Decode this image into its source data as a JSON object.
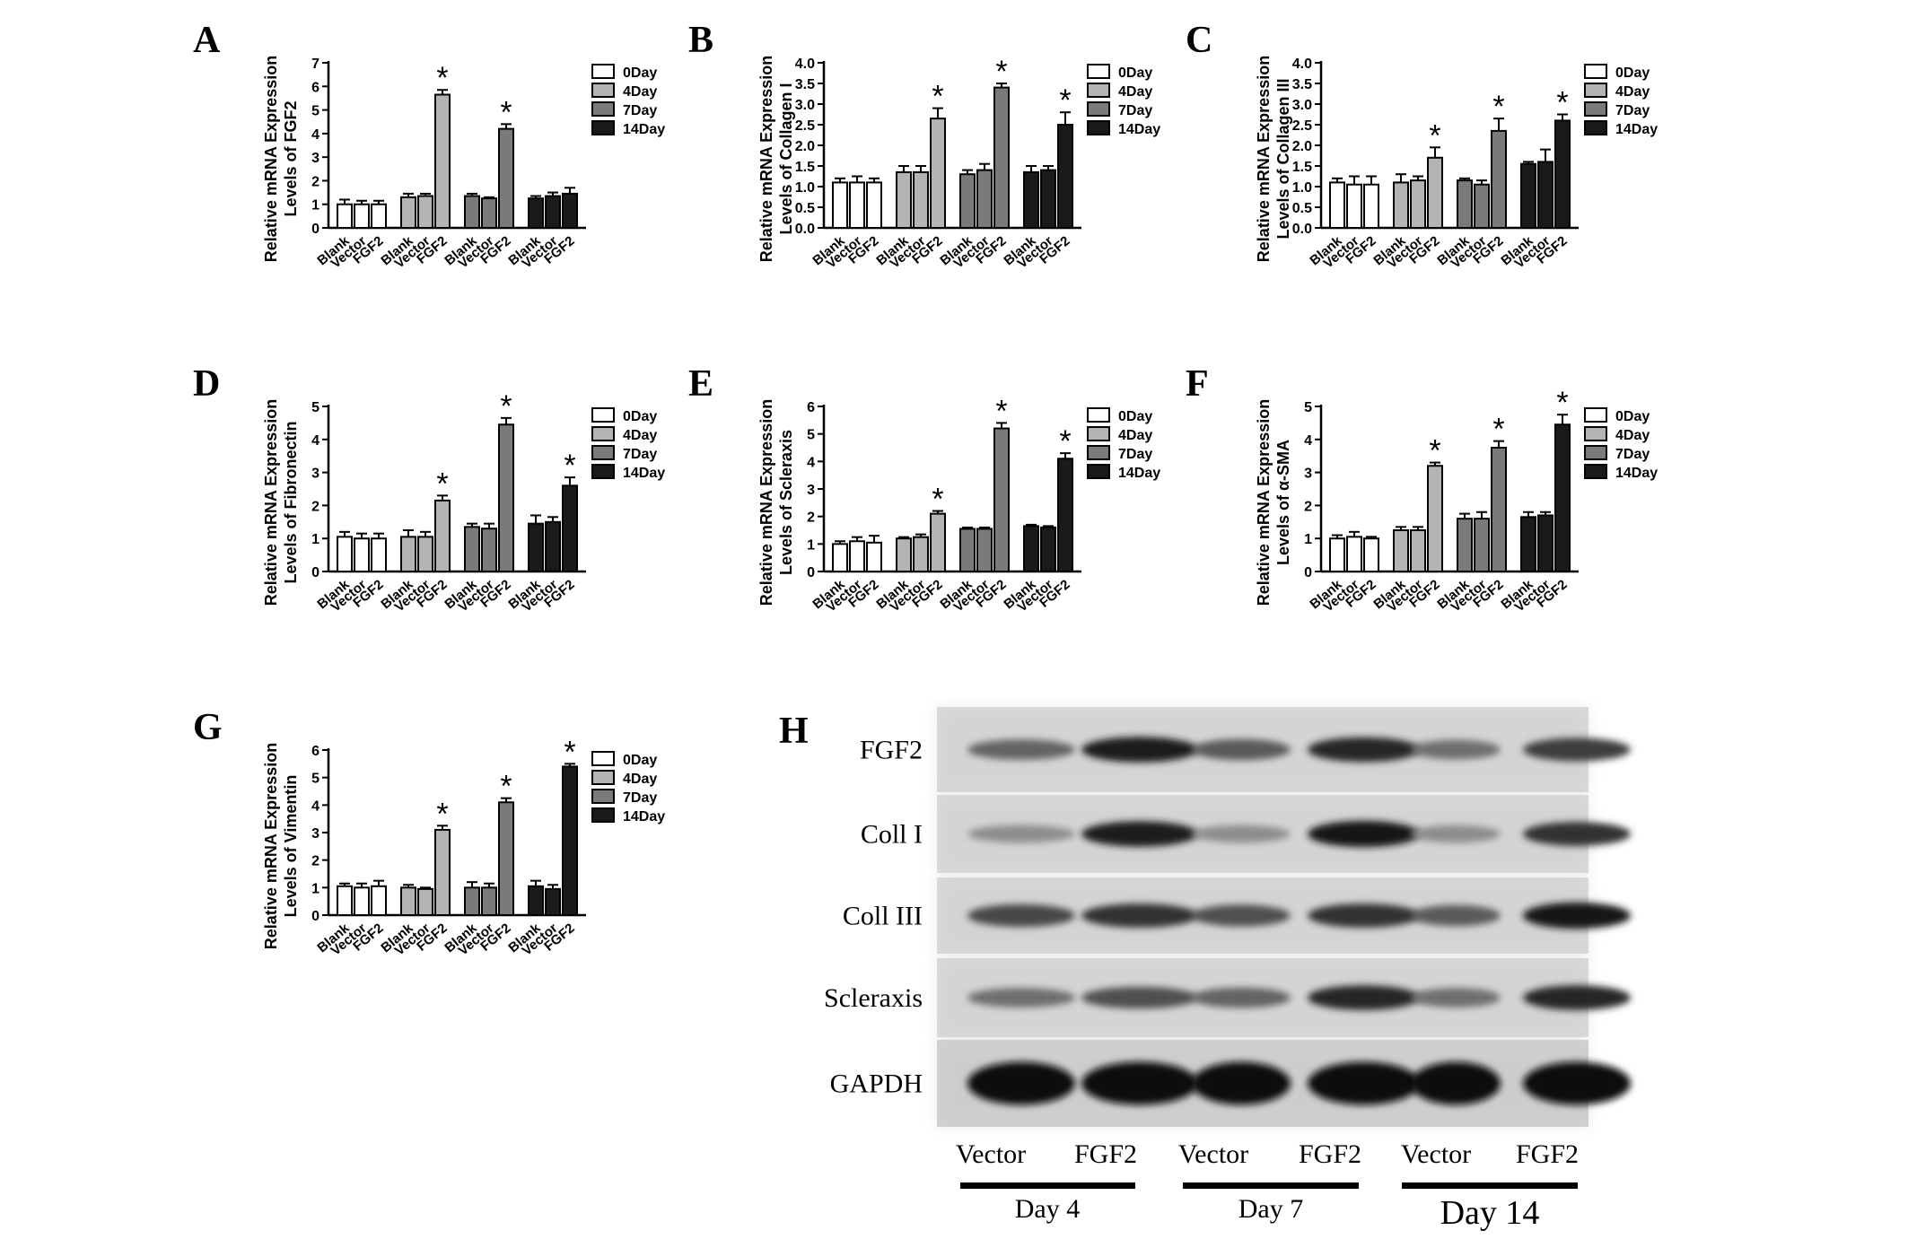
{
  "chart_data": [
    {
      "panel": "A",
      "type": "bar",
      "ylabel": [
        "Relative mRNA Expression",
        "Levels of FGF2"
      ],
      "ylim": [
        0,
        7
      ],
      "yticks": [
        0,
        1,
        2,
        3,
        4,
        5,
        6,
        7
      ],
      "tick_labels": [
        "0",
        "1",
        "2",
        "3",
        "4",
        "5",
        "6",
        "7"
      ],
      "groups": [
        {
          "name": "0Day",
          "categories": [
            "Blank",
            "Vector",
            "FGF2"
          ],
          "values": [
            1.0,
            1.0,
            1.0
          ],
          "errors": [
            0.2,
            0.15,
            0.15
          ],
          "significant": [
            false,
            false,
            false
          ]
        },
        {
          "name": "4Day",
          "categories": [
            "Blank",
            "Vector",
            "FGF2"
          ],
          "values": [
            1.3,
            1.35,
            5.65
          ],
          "errors": [
            0.15,
            0.1,
            0.2
          ],
          "significant": [
            false,
            false,
            true
          ]
        },
        {
          "name": "7Day",
          "categories": [
            "Blank",
            "Vector",
            "FGF2"
          ],
          "values": [
            1.35,
            1.25,
            4.2
          ],
          "errors": [
            0.1,
            0.05,
            0.2
          ],
          "significant": [
            false,
            false,
            true
          ]
        },
        {
          "name": "14Day",
          "categories": [
            "Blank",
            "Vector",
            "FGF2"
          ],
          "values": [
            1.25,
            1.35,
            1.45
          ],
          "errors": [
            0.1,
            0.15,
            0.25
          ],
          "significant": [
            false,
            false,
            false
          ]
        }
      ],
      "legend": [
        "0Day",
        "4Day",
        "7Day",
        "14Day"
      ]
    },
    {
      "panel": "B",
      "type": "bar",
      "ylabel": [
        "Relative mRNA Expression",
        "Levels of Collagen I"
      ],
      "ylim": [
        0,
        4
      ],
      "yticks": [
        0,
        0.5,
        1,
        1.5,
        2,
        2.5,
        3,
        3.5,
        4
      ],
      "tick_labels": [
        "0.0",
        "0.5",
        "1.0",
        "1.5",
        "2.0",
        "2.5",
        "3.0",
        "3.5",
        "4.0"
      ],
      "groups": [
        {
          "name": "0Day",
          "categories": [
            "Blank",
            "Vector",
            "FGF2"
          ],
          "values": [
            1.1,
            1.1,
            1.1
          ],
          "errors": [
            0.1,
            0.15,
            0.1
          ],
          "significant": [
            false,
            false,
            false
          ]
        },
        {
          "name": "4Day",
          "categories": [
            "Blank",
            "Vector",
            "FGF2"
          ],
          "values": [
            1.35,
            1.35,
            2.65
          ],
          "errors": [
            0.15,
            0.15,
            0.25
          ],
          "significant": [
            false,
            false,
            true
          ]
        },
        {
          "name": "7Day",
          "categories": [
            "Blank",
            "Vector",
            "FGF2"
          ],
          "values": [
            1.3,
            1.4,
            3.4
          ],
          "errors": [
            0.1,
            0.15,
            0.1
          ],
          "significant": [
            false,
            false,
            true
          ]
        },
        {
          "name": "14Day",
          "categories": [
            "Blank",
            "Vector",
            "FGF2"
          ],
          "values": [
            1.35,
            1.4,
            2.5
          ],
          "errors": [
            0.15,
            0.1,
            0.3
          ],
          "significant": [
            false,
            false,
            true
          ]
        }
      ],
      "legend": [
        "0Day",
        "4Day",
        "7Day",
        "14Day"
      ]
    },
    {
      "panel": "C",
      "type": "bar",
      "ylabel": [
        "Relative mRNA Expression",
        "Levels of Collagen III"
      ],
      "ylim": [
        0,
        4
      ],
      "yticks": [
        0,
        0.5,
        1,
        1.5,
        2,
        2.5,
        3,
        3.5,
        4
      ],
      "tick_labels": [
        "0.0",
        "0.5",
        "1.0",
        "1.5",
        "2.0",
        "2.5",
        "3.0",
        "3.5",
        "4.0"
      ],
      "groups": [
        {
          "name": "0Day",
          "categories": [
            "Blank",
            "Vector",
            "FGF2"
          ],
          "values": [
            1.1,
            1.05,
            1.05
          ],
          "errors": [
            0.1,
            0.2,
            0.2
          ],
          "significant": [
            false,
            false,
            false
          ]
        },
        {
          "name": "4Day",
          "categories": [
            "Blank",
            "Vector",
            "FGF2"
          ],
          "values": [
            1.1,
            1.15,
            1.7
          ],
          "errors": [
            0.2,
            0.1,
            0.25
          ],
          "significant": [
            false,
            false,
            true
          ]
        },
        {
          "name": "7Day",
          "categories": [
            "Blank",
            "Vector",
            "FGF2"
          ],
          "values": [
            1.15,
            1.05,
            2.35
          ],
          "errors": [
            0.05,
            0.1,
            0.3
          ],
          "significant": [
            false,
            false,
            true
          ]
        },
        {
          "name": "14Day",
          "categories": [
            "Blank",
            "Vector",
            "FGF2"
          ],
          "values": [
            1.55,
            1.6,
            2.6
          ],
          "errors": [
            0.05,
            0.3,
            0.15
          ],
          "significant": [
            false,
            false,
            true
          ]
        }
      ],
      "legend": [
        "0Day",
        "4Day",
        "7Day",
        "14Day"
      ]
    },
    {
      "panel": "D",
      "type": "bar",
      "ylabel": [
        "Relative mRNA Expression",
        "Levels of Fibronectin"
      ],
      "ylim": [
        0,
        5
      ],
      "yticks": [
        0,
        1,
        2,
        3,
        4,
        5
      ],
      "tick_labels": [
        "0",
        "1",
        "2",
        "3",
        "4",
        "5"
      ],
      "groups": [
        {
          "name": "0Day",
          "categories": [
            "Blank",
            "Vector",
            "FGF2"
          ],
          "values": [
            1.05,
            1.0,
            1.0
          ],
          "errors": [
            0.15,
            0.15,
            0.15
          ],
          "significant": [
            false,
            false,
            false
          ]
        },
        {
          "name": "4Day",
          "categories": [
            "Blank",
            "Vector",
            "FGF2"
          ],
          "values": [
            1.05,
            1.05,
            2.15
          ],
          "errors": [
            0.2,
            0.15,
            0.15
          ],
          "significant": [
            false,
            false,
            true
          ]
        },
        {
          "name": "7Day",
          "categories": [
            "Blank",
            "Vector",
            "FGF2"
          ],
          "values": [
            1.35,
            1.3,
            4.45
          ],
          "errors": [
            0.1,
            0.15,
            0.2
          ],
          "significant": [
            false,
            false,
            true
          ]
        },
        {
          "name": "14Day",
          "categories": [
            "Blank",
            "Vector",
            "FGF2"
          ],
          "values": [
            1.45,
            1.5,
            2.6
          ],
          "errors": [
            0.25,
            0.15,
            0.25
          ],
          "significant": [
            false,
            false,
            true
          ]
        }
      ],
      "legend": [
        "0Day",
        "4Day",
        "7Day",
        "14Day"
      ]
    },
    {
      "panel": "E",
      "type": "bar",
      "ylabel": [
        "Relative mRNA Expression",
        "Levels of Scleraxis"
      ],
      "ylim": [
        0,
        6
      ],
      "yticks": [
        0,
        1,
        2,
        3,
        4,
        5,
        6
      ],
      "tick_labels": [
        "0",
        "1",
        "2",
        "3",
        "4",
        "5",
        "6"
      ],
      "groups": [
        {
          "name": "0Day",
          "categories": [
            "Blank",
            "Vector",
            "FGF2"
          ],
          "values": [
            1.0,
            1.1,
            1.05
          ],
          "errors": [
            0.1,
            0.15,
            0.25
          ],
          "significant": [
            false,
            false,
            false
          ]
        },
        {
          "name": "4Day",
          "categories": [
            "Blank",
            "Vector",
            "FGF2"
          ],
          "values": [
            1.2,
            1.25,
            2.1
          ],
          "errors": [
            0.05,
            0.1,
            0.1
          ],
          "significant": [
            false,
            false,
            true
          ]
        },
        {
          "name": "7Day",
          "categories": [
            "Blank",
            "Vector",
            "FGF2"
          ],
          "values": [
            1.55,
            1.55,
            5.2
          ],
          "errors": [
            0.05,
            0.05,
            0.2
          ],
          "significant": [
            false,
            false,
            true
          ]
        },
        {
          "name": "14Day",
          "categories": [
            "Blank",
            "Vector",
            "FGF2"
          ],
          "values": [
            1.65,
            1.6,
            4.1
          ],
          "errors": [
            0.05,
            0.05,
            0.2
          ],
          "significant": [
            false,
            false,
            true
          ]
        }
      ],
      "legend": [
        "0Day",
        "4Day",
        "7Day",
        "14Day"
      ]
    },
    {
      "panel": "F",
      "type": "bar",
      "ylabel": [
        "Relative mRNA Expression",
        "Levels of α-SMA"
      ],
      "ylim": [
        0,
        5
      ],
      "yticks": [
        0,
        1,
        2,
        3,
        4,
        5
      ],
      "tick_labels": [
        "0",
        "1",
        "2",
        "3",
        "4",
        "5"
      ],
      "groups": [
        {
          "name": "0Day",
          "categories": [
            "Blank",
            "Vector",
            "FGF2"
          ],
          "values": [
            1.0,
            1.05,
            1.0
          ],
          "errors": [
            0.1,
            0.15,
            0.05
          ],
          "significant": [
            false,
            false,
            false
          ]
        },
        {
          "name": "4Day",
          "categories": [
            "Blank",
            "Vector",
            "FGF2"
          ],
          "values": [
            1.25,
            1.25,
            3.2
          ],
          "errors": [
            0.1,
            0.1,
            0.1
          ],
          "significant": [
            false,
            false,
            true
          ]
        },
        {
          "name": "7Day",
          "categories": [
            "Blank",
            "Vector",
            "FGF2"
          ],
          "values": [
            1.6,
            1.6,
            3.75
          ],
          "errors": [
            0.15,
            0.2,
            0.2
          ],
          "significant": [
            false,
            false,
            true
          ]
        },
        {
          "name": "14Day",
          "categories": [
            "Blank",
            "Vector",
            "FGF2"
          ],
          "values": [
            1.65,
            1.7,
            4.45
          ],
          "errors": [
            0.15,
            0.1,
            0.3
          ],
          "significant": [
            false,
            false,
            true
          ]
        }
      ],
      "legend": [
        "0Day",
        "4Day",
        "7Day",
        "14Day"
      ]
    },
    {
      "panel": "G",
      "type": "bar",
      "ylabel": [
        "Relative mRNA Expression",
        "Levels of Vimentin"
      ],
      "ylim": [
        0,
        6
      ],
      "yticks": [
        0,
        1,
        2,
        3,
        4,
        5,
        6
      ],
      "tick_labels": [
        "0",
        "1",
        "2",
        "3",
        "4",
        "5",
        "6"
      ],
      "groups": [
        {
          "name": "0Day",
          "categories": [
            "Blank",
            "Vector",
            "FGF2"
          ],
          "values": [
            1.05,
            1.0,
            1.05
          ],
          "errors": [
            0.1,
            0.15,
            0.2
          ],
          "significant": [
            false,
            false,
            false
          ]
        },
        {
          "name": "4Day",
          "categories": [
            "Blank",
            "Vector",
            "FGF2"
          ],
          "values": [
            1.0,
            0.95,
            3.1
          ],
          "errors": [
            0.1,
            0.05,
            0.15
          ],
          "significant": [
            false,
            false,
            true
          ]
        },
        {
          "name": "7Day",
          "categories": [
            "Blank",
            "Vector",
            "FGF2"
          ],
          "values": [
            1.0,
            1.0,
            4.1
          ],
          "errors": [
            0.2,
            0.15,
            0.15
          ],
          "significant": [
            false,
            false,
            true
          ]
        },
        {
          "name": "14Day",
          "categories": [
            "Blank",
            "Vector",
            "FGF2"
          ],
          "values": [
            1.05,
            0.95,
            5.4
          ],
          "errors": [
            0.2,
            0.15,
            0.1
          ],
          "significant": [
            false,
            false,
            true
          ]
        }
      ],
      "legend": [
        "0Day",
        "4Day",
        "7Day",
        "14Day"
      ]
    }
  ],
  "colors": {
    "0Day": "#ffffff",
    "4Day": "#b4b4b4",
    "7Day": "#7a7a7a",
    "14Day": "#1a1a1a"
  },
  "significance_marker": "*",
  "western_blot": {
    "panel": "H",
    "proteins": [
      "FGF2",
      "Coll I",
      "Coll III",
      "Scleraxis",
      "GAPDH"
    ],
    "lanes": [
      "Vector",
      "FGF2",
      "Vector",
      "FGF2",
      "Vector",
      "FGF2"
    ],
    "days": [
      "Day 4",
      "Day 7",
      "Day 14"
    ],
    "band_intensity": [
      [
        0.55,
        0.9,
        0.6,
        0.85,
        0.5,
        0.75
      ],
      [
        0.35,
        0.9,
        0.35,
        0.95,
        0.35,
        0.8
      ],
      [
        0.7,
        0.8,
        0.65,
        0.8,
        0.6,
        0.95
      ],
      [
        0.5,
        0.65,
        0.55,
        0.85,
        0.5,
        0.85
      ],
      [
        0.98,
        1.0,
        0.97,
        0.98,
        0.97,
        0.98
      ]
    ]
  }
}
